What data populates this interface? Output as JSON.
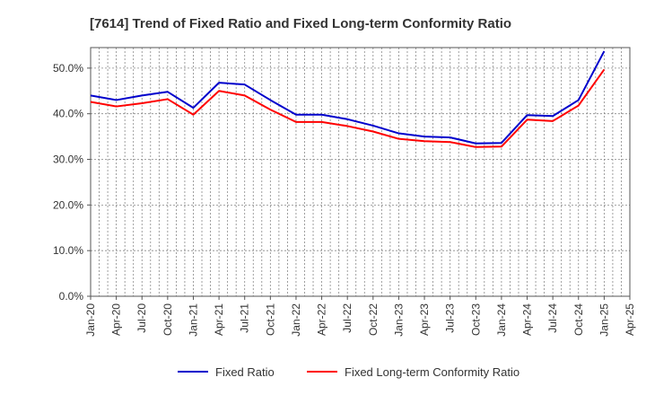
{
  "chart_data": {
    "type": "line",
    "title": "[7614]  Trend of Fixed Ratio and Fixed Long-term Conformity Ratio",
    "xlabel": "",
    "ylabel": "",
    "x_tick_labels": [
      "Jan-20",
      "Apr-20",
      "Jul-20",
      "Oct-20",
      "Jan-21",
      "Apr-21",
      "Jul-21",
      "Oct-21",
      "Jan-22",
      "Apr-22",
      "Jul-22",
      "Oct-22",
      "Jan-23",
      "Apr-23",
      "Jul-23",
      "Oct-23",
      "Jan-24",
      "Apr-24",
      "Jul-24",
      "Oct-24",
      "Jan-25",
      "Apr-25"
    ],
    "y_tick_labels": [
      "0.0%",
      "10.0%",
      "20.0%",
      "30.0%",
      "40.0%",
      "50.0%"
    ],
    "y_ticks": [
      0,
      10,
      20,
      30,
      40,
      50
    ],
    "ylim": [
      0,
      54.5
    ],
    "grid": true,
    "legend_position": "bottom",
    "x": [
      "Jan-20",
      "Apr-20",
      "Jul-20",
      "Oct-20",
      "Jan-21",
      "Apr-21",
      "Jul-21",
      "Oct-21",
      "Jan-22",
      "Apr-22",
      "Jul-22",
      "Oct-22",
      "Jan-23",
      "Apr-23",
      "Jul-23",
      "Oct-23",
      "Jan-24",
      "Apr-24",
      "Jul-24",
      "Oct-24",
      "Jan-25"
    ],
    "series": [
      {
        "name": "Fixed Ratio",
        "color": "#0000cc",
        "values": [
          44.0,
          43.0,
          44.0,
          44.8,
          41.3,
          46.8,
          46.4,
          43.0,
          39.8,
          39.8,
          38.8,
          37.4,
          35.7,
          35.0,
          34.8,
          33.5,
          33.6,
          39.7,
          39.5,
          43.0,
          53.7
        ]
      },
      {
        "name": "Fixed Long-term Conformity Ratio",
        "color": "#ff0000",
        "values": [
          42.6,
          41.6,
          42.3,
          43.2,
          39.8,
          45.0,
          44.0,
          40.9,
          38.2,
          38.2,
          37.3,
          36.1,
          34.5,
          34.0,
          33.8,
          32.7,
          32.8,
          38.7,
          38.4,
          41.8,
          49.7
        ]
      }
    ]
  }
}
